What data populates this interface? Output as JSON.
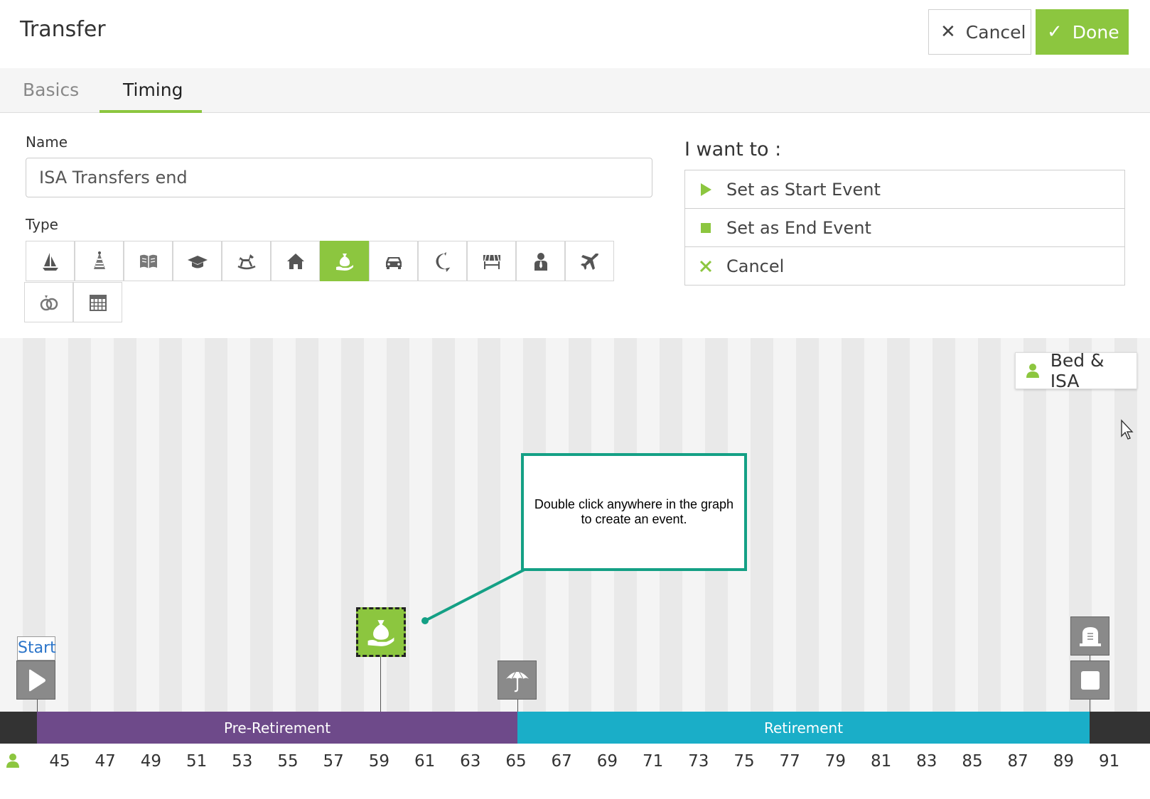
{
  "header": {
    "title": "Transfer",
    "cancel_label": "Cancel",
    "done_label": "Done"
  },
  "tabs": [
    {
      "label": "Basics",
      "active": false
    },
    {
      "label": "Timing",
      "active": true
    }
  ],
  "form": {
    "name_label": "Name",
    "name_value": "ISA Transfers end",
    "type_label": "Type",
    "types": [
      {
        "icon": "sailboat-icon"
      },
      {
        "icon": "party-hat-icon"
      },
      {
        "icon": "book-icon"
      },
      {
        "icon": "graduation-cap-icon"
      },
      {
        "icon": "rocking-horse-icon"
      },
      {
        "icon": "house-icon"
      },
      {
        "icon": "money-bag-hand-icon",
        "selected": true
      },
      {
        "icon": "car-icon"
      },
      {
        "icon": "moon-refresh-icon"
      },
      {
        "icon": "awning-store-icon"
      },
      {
        "icon": "businessman-icon"
      },
      {
        "icon": "airplane-icon"
      },
      {
        "icon": "wedding-rings-icon"
      },
      {
        "icon": "calendar-icon"
      }
    ]
  },
  "want": {
    "title": "I want to :",
    "items": [
      {
        "label": "Set as Start Event",
        "icon": "play-icon"
      },
      {
        "label": "Set as End Event",
        "icon": "stop-icon"
      },
      {
        "label": "Cancel",
        "icon": "close-icon"
      }
    ]
  },
  "timeline": {
    "person_button": "Bed & ISA",
    "callout": "Double click anywhere in the graph to create an event.",
    "start_label": "Start",
    "phases": {
      "pre": "Pre-Retirement",
      "post": "Retirement"
    },
    "ages": [
      "45",
      "47",
      "49",
      "51",
      "53",
      "55",
      "57",
      "59",
      "61",
      "63",
      "65",
      "67",
      "69",
      "71",
      "73",
      "75",
      "77",
      "79",
      "81",
      "83",
      "85",
      "87",
      "89",
      "91"
    ]
  },
  "colors": {
    "accent": "#8cc63f",
    "pre_retirement": "#6e4a8a",
    "retirement": "#1aaec8",
    "callout_border": "#14a085"
  }
}
